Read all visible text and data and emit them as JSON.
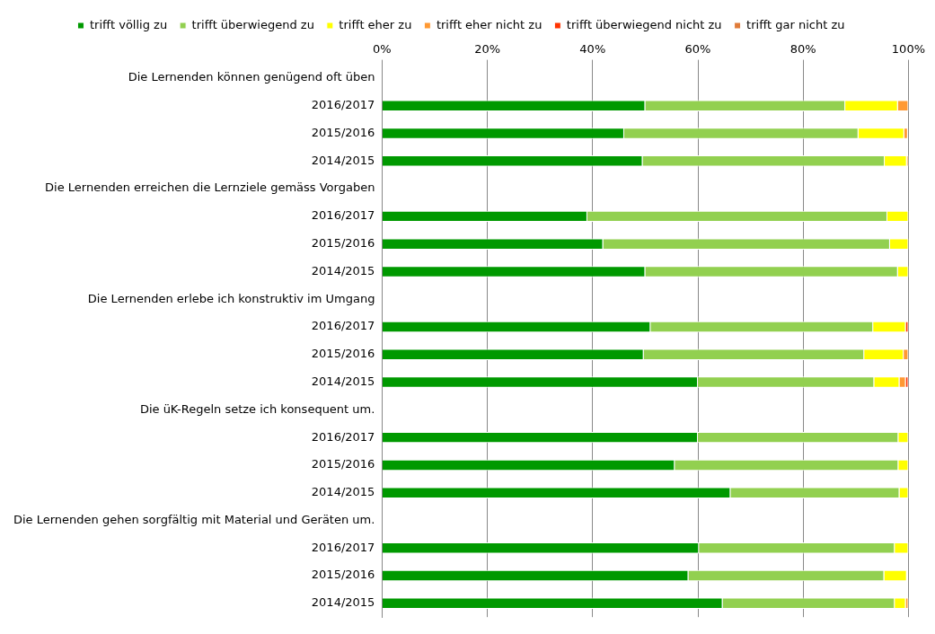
{
  "chart_data": {
    "type": "bar",
    "orientation": "horizontal",
    "stacked": true,
    "legend": "top",
    "grid": "x",
    "categories": [
      "Die Lernenden können genügend oft üben",
      "2016/2017",
      "2015/2016",
      "2014/2015",
      "Die Lernenden erreichen die Lernziele gemäss Vorgaben",
      "2016/2017",
      "2015/2016",
      "2014/2015",
      "Die Lernenden erlebe ich konstruktiv im Umgang",
      "2016/2017",
      "2015/2016",
      "2014/2015",
      "Die üK-Regeln setze ich konsequent um.",
      "2016/2017",
      "2015/2016",
      "2014/2015",
      "Die Lernenden gehen sorgfältig mit Material und Geräten um.",
      "2016/2017",
      "2015/2016",
      "2014/2015"
    ],
    "xlim": [
      0,
      100
    ],
    "xticks": [
      {
        "value": 0,
        "label": "0%"
      },
      {
        "value": 20,
        "label": "20%"
      },
      {
        "value": 40,
        "label": "40%"
      },
      {
        "value": 60,
        "label": "60%"
      },
      {
        "value": 80,
        "label": "80%"
      },
      {
        "value": 100,
        "label": "100%"
      }
    ],
    "series": [
      {
        "name": "trifft völlig zu",
        "color": "#009900",
        "values": [
          null,
          50,
          46,
          49.5,
          null,
          39,
          42,
          50,
          null,
          51,
          49.7,
          60,
          null,
          60,
          55.6,
          66.2,
          null,
          60.2,
          58.2,
          64.7
        ]
      },
      {
        "name": "trifft überwiegend zu",
        "color": "#92d050",
        "values": [
          null,
          38,
          44.5,
          46,
          null,
          57,
          54.5,
          48,
          null,
          42.3,
          41.9,
          33.5,
          null,
          38.1,
          42.5,
          32.1,
          null,
          37.2,
          37.2,
          32.7
        ]
      },
      {
        "name": "trifft eher zu",
        "color": "#ffff00",
        "values": [
          null,
          10,
          8.7,
          4.2,
          null,
          4,
          3.5,
          2,
          null,
          6.2,
          7.5,
          4.8,
          null,
          1.9,
          1.9,
          1.7,
          null,
          2.6,
          4.3,
          2.1
        ]
      },
      {
        "name": "trifft eher nicht zu",
        "color": "#ff9933",
        "values": [
          null,
          2,
          0.7,
          0.3,
          null,
          null,
          null,
          null,
          null,
          null,
          0.9,
          1.2,
          null,
          null,
          null,
          null,
          null,
          null,
          null,
          0.5
        ]
      },
      {
        "name": "trifft überwiegend nicht zu",
        "color": "#ff3300",
        "values": [
          null,
          null,
          null,
          null,
          null,
          null,
          null,
          null,
          null,
          0.5,
          null,
          0.5,
          null,
          null,
          null,
          null,
          null,
          null,
          null,
          null
        ]
      },
      {
        "name": "trifft gar nicht zu",
        "color": "#e07b39",
        "values": [
          null,
          null,
          null,
          null,
          null,
          null,
          null,
          null,
          null,
          null,
          null,
          null,
          null,
          null,
          null,
          null,
          null,
          null,
          null,
          null
        ]
      }
    ]
  }
}
